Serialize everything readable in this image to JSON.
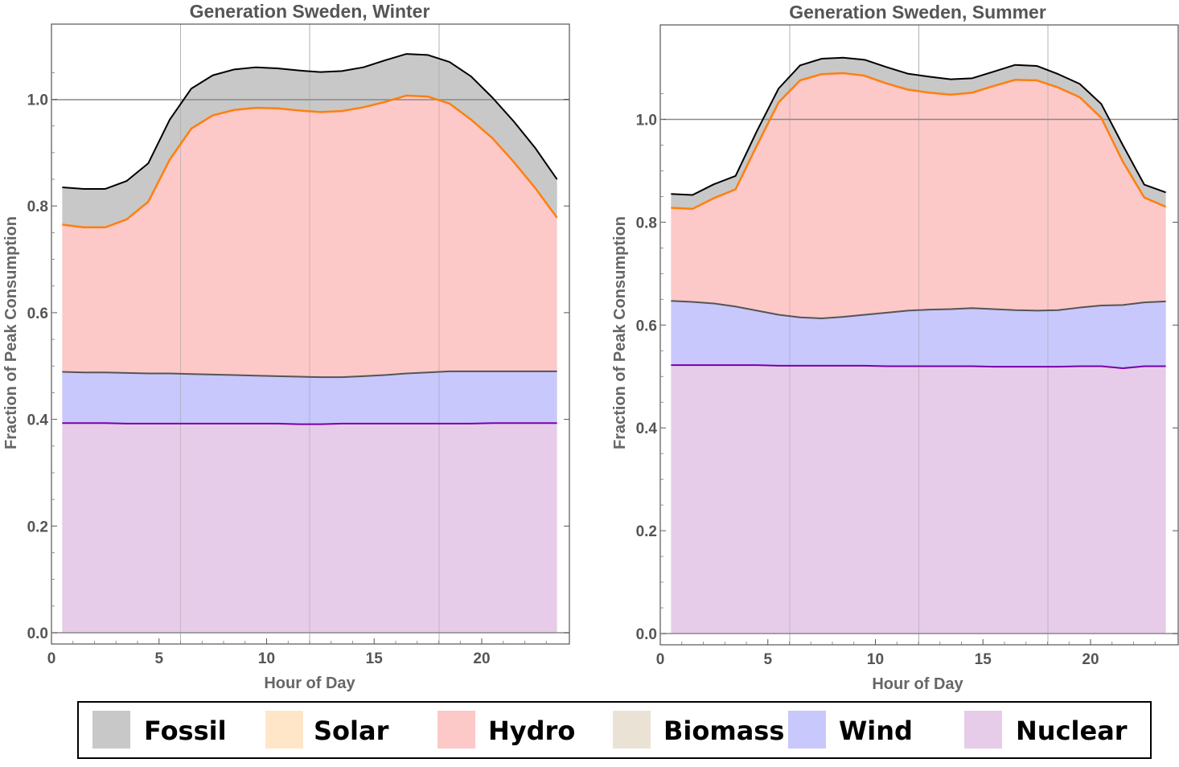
{
  "chart_data": [
    {
      "type": "area",
      "stacked": true,
      "title": "Generation Sweden,  Winter",
      "xlabel": "Hour of Day",
      "ylabel": "Fraction of Peak Consumption",
      "xlim": [
        0,
        24
      ],
      "ylim": [
        0,
        1.15
      ],
      "xticks": [
        "0",
        "5",
        "10",
        "15",
        "20"
      ],
      "yticks": [
        "0.0",
        "0.2",
        "0.4",
        "0.6",
        "0.8",
        "1.0"
      ],
      "grid": true,
      "x": [
        0.5,
        1.5,
        2.5,
        3.5,
        4.5,
        5.5,
        6.5,
        7.5,
        8.5,
        9.5,
        10.5,
        11.5,
        12.5,
        13.5,
        14.5,
        15.5,
        16.5,
        17.5,
        18.5,
        19.5,
        20.5,
        21.5,
        22.5,
        23.5
      ],
      "cumulative": {
        "Nuclear": [
          0.393,
          0.393,
          0.393,
          0.392,
          0.392,
          0.392,
          0.392,
          0.392,
          0.392,
          0.392,
          0.392,
          0.391,
          0.391,
          0.392,
          0.392,
          0.392,
          0.392,
          0.392,
          0.392,
          0.392,
          0.393,
          0.393,
          0.393,
          0.393
        ],
        "Wind": [
          0.489,
          0.488,
          0.488,
          0.487,
          0.486,
          0.486,
          0.485,
          0.484,
          0.483,
          0.482,
          0.481,
          0.48,
          0.479,
          0.479,
          0.481,
          0.483,
          0.486,
          0.488,
          0.49,
          0.49,
          0.49,
          0.49,
          0.49,
          0.49
        ],
        "Hydro": [
          0.765,
          0.76,
          0.76,
          0.775,
          0.808,
          0.887,
          0.945,
          0.97,
          0.98,
          0.984,
          0.983,
          0.979,
          0.976,
          0.978,
          0.985,
          0.995,
          1.007,
          1.005,
          0.992,
          0.962,
          0.927,
          0.882,
          0.833,
          0.778
        ],
        "Fossil": [
          0.835,
          0.832,
          0.832,
          0.847,
          0.88,
          0.962,
          1.02,
          1.045,
          1.056,
          1.06,
          1.058,
          1.054,
          1.051,
          1.053,
          1.06,
          1.073,
          1.085,
          1.083,
          1.07,
          1.043,
          1.003,
          0.958,
          0.908,
          0.85
        ]
      }
    },
    {
      "type": "area",
      "stacked": true,
      "title": "Generation Sweden,  Summer",
      "xlabel": "Hour of Day",
      "ylabel": "Fraction of Peak Consumption",
      "xlim": [
        0,
        24
      ],
      "ylim": [
        0,
        1.2
      ],
      "xticks": [
        "0",
        "5",
        "10",
        "15",
        "20"
      ],
      "yticks": [
        "0.0",
        "0.2",
        "0.4",
        "0.6",
        "0.8",
        "1.0"
      ],
      "grid": true,
      "x": [
        0.5,
        1.5,
        2.5,
        3.5,
        4.5,
        5.5,
        6.5,
        7.5,
        8.5,
        9.5,
        10.5,
        11.5,
        12.5,
        13.5,
        14.5,
        15.5,
        16.5,
        17.5,
        18.5,
        19.5,
        20.5,
        21.5,
        22.5,
        23.5
      ],
      "cumulative": {
        "Nuclear": [
          0.522,
          0.522,
          0.522,
          0.522,
          0.522,
          0.521,
          0.521,
          0.521,
          0.521,
          0.521,
          0.52,
          0.52,
          0.52,
          0.52,
          0.52,
          0.519,
          0.519,
          0.519,
          0.519,
          0.52,
          0.52,
          0.516,
          0.52,
          0.52
        ],
        "Wind": [
          0.647,
          0.645,
          0.642,
          0.636,
          0.628,
          0.62,
          0.615,
          0.613,
          0.616,
          0.62,
          0.624,
          0.628,
          0.63,
          0.631,
          0.633,
          0.631,
          0.629,
          0.628,
          0.629,
          0.634,
          0.638,
          0.639,
          0.644,
          0.646
        ],
        "Hydro": [
          0.828,
          0.826,
          0.847,
          0.864,
          0.95,
          1.033,
          1.076,
          1.088,
          1.09,
          1.085,
          1.07,
          1.058,
          1.052,
          1.048,
          1.052,
          1.065,
          1.077,
          1.076,
          1.062,
          1.043,
          1.003,
          0.918,
          0.848,
          0.83
        ],
        "Fossil": [
          0.855,
          0.853,
          0.874,
          0.89,
          0.978,
          1.06,
          1.105,
          1.118,
          1.12,
          1.116,
          1.102,
          1.089,
          1.083,
          1.078,
          1.08,
          1.093,
          1.106,
          1.104,
          1.088,
          1.069,
          1.03,
          0.95,
          0.873,
          0.858
        ]
      }
    }
  ],
  "legend": {
    "items": [
      {
        "label": "Fossil",
        "color": "#c8c8c8"
      },
      {
        "label": "Solar",
        "color": "#ffe6c8"
      },
      {
        "label": "Hydro",
        "color": "#fcc8c8"
      },
      {
        "label": "Biomass",
        "color": "#ebe2d6"
      },
      {
        "label": "Wind",
        "color": "#c8c8fc"
      },
      {
        "label": "Nuclear",
        "color": "#e6cce8"
      }
    ]
  },
  "colors": {
    "nuclear_fill": "#e6cce8",
    "wind_fill": "#c8c8fc",
    "hydro_fill": "#fcc8c8",
    "fossil_fill": "#c8c8c8",
    "nuclear_line": "#7a00a8",
    "wind_line": "#555555",
    "hydro_line": "#ff7f0e",
    "fossil_line": "#000000",
    "reference_line": "#888888"
  }
}
